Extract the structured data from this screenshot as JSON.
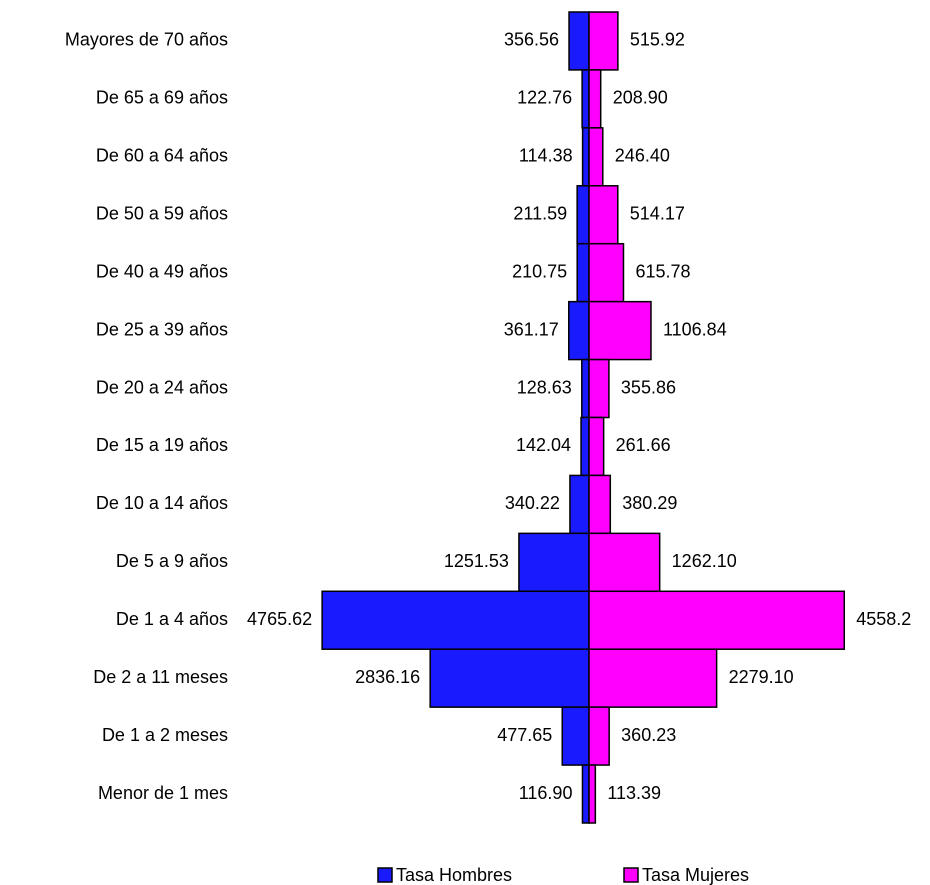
{
  "chart_data": {
    "type": "bar",
    "categories": [
      "Mayores de 70 años",
      "De 65 a 69 años",
      "De 60 a 64 años",
      "De 50 a 59 años",
      "De 40 a 49 años",
      "De 25 a 39 años",
      "De 20 a 24 años",
      "De 15 a 19 años",
      "De 10 a 14 años",
      "De 5 a 9 años",
      "De 1 a 4 años",
      "De 2 a 11 meses",
      "De 1 a 2 meses",
      "Menor de 1 mes"
    ],
    "series": [
      {
        "name": "Tasa Hombres",
        "color": "#1a1aff",
        "values": [
          356.56,
          122.76,
          114.38,
          211.59,
          210.75,
          361.17,
          128.63,
          142.04,
          340.22,
          1251.53,
          4765.62,
          2836.16,
          477.65,
          116.9
        ],
        "value_labels": [
          "356.56",
          "122.76",
          "114.38",
          "211.59",
          "210.75",
          "361.17",
          "128.63",
          "142.04",
          "340.22",
          "1251.53",
          "4765.62",
          "2836.16",
          "477.65",
          "116.90"
        ]
      },
      {
        "name": "Tasa Mujeres",
        "color": "#ff00ff",
        "values": [
          515.92,
          208.9,
          246.4,
          514.17,
          615.78,
          1106.84,
          355.86,
          261.66,
          380.29,
          1262.1,
          4558.2,
          2279.1,
          360.23,
          113.39
        ],
        "value_labels": [
          "515.92",
          "208.90",
          "246.40",
          "514.17",
          "615.78",
          "1106.84",
          "355.86",
          "261.66",
          "380.29",
          "1262.10",
          "4558.2",
          "2279.10",
          "360.23",
          "113.39"
        ]
      }
    ]
  }
}
